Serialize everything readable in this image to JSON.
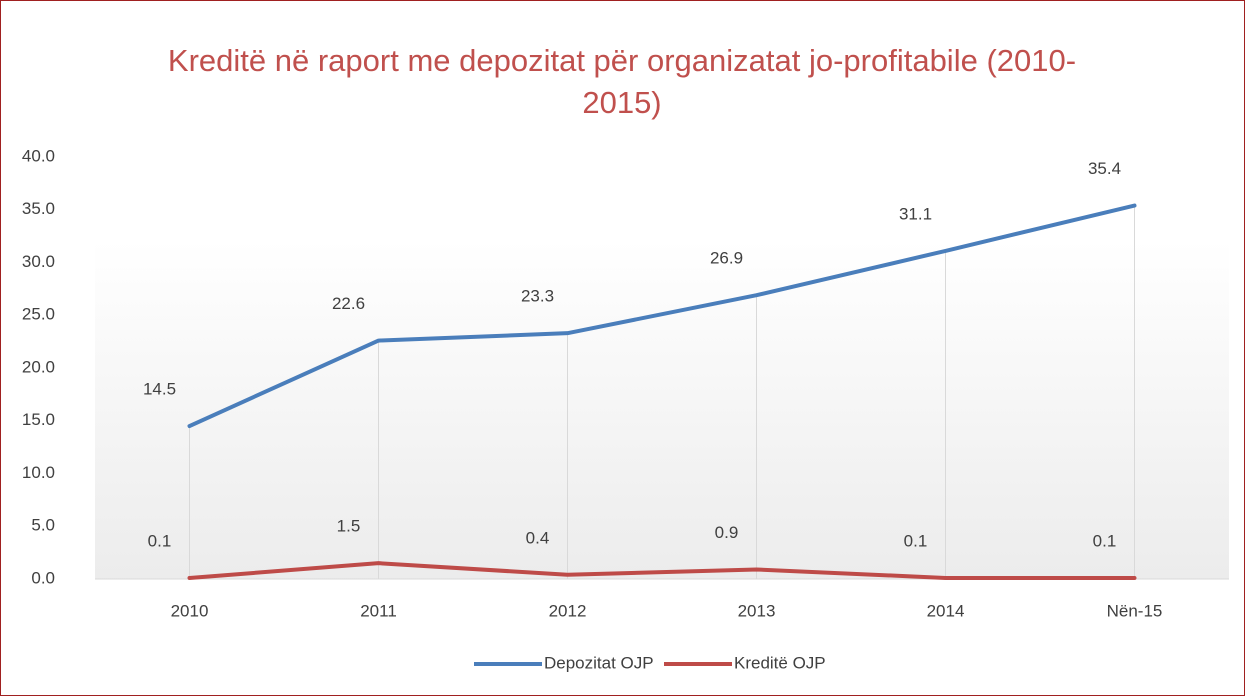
{
  "chart_data": {
    "type": "line",
    "title": "Kreditë në raport me depozitat për organizatat jo-profitabile (2010-2015)",
    "categories": [
      "2010",
      "2011",
      "2012",
      "2013",
      "2014",
      "Nën-15"
    ],
    "series": [
      {
        "name": "Depozitat OJP",
        "color": "#4a7ebb",
        "values": [
          14.5,
          22.6,
          23.3,
          26.9,
          31.1,
          35.4
        ]
      },
      {
        "name": "Kreditë OJP",
        "color": "#be4b48",
        "values": [
          0.1,
          1.5,
          0.4,
          0.9,
          0.1,
          0.1
        ]
      }
    ],
    "ylim": [
      0,
      40
    ],
    "yticks": [
      {
        "value": 0,
        "label": "0.0"
      },
      {
        "value": 5,
        "label": "5.0"
      },
      {
        "value": 10,
        "label": "10.0"
      },
      {
        "value": 15,
        "label": "15.0"
      },
      {
        "value": 20,
        "label": "20.0"
      },
      {
        "value": 25,
        "label": "25.0"
      },
      {
        "value": 30,
        "label": "30.0"
      },
      {
        "value": 35,
        "label": "35.0"
      },
      {
        "value": 40,
        "label": "40.0"
      }
    ],
    "grid": false,
    "legend": "bottom"
  }
}
